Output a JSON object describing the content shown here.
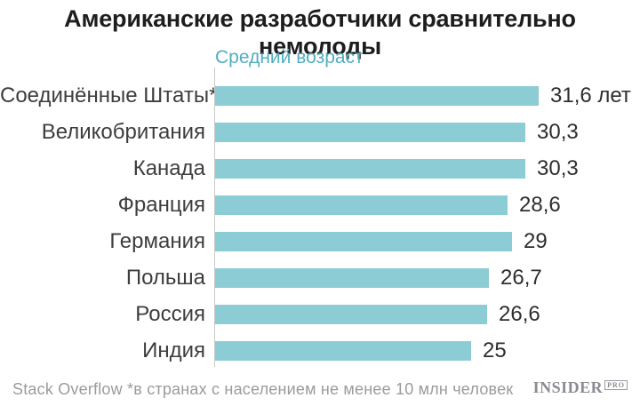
{
  "title": "Американские разработчики сравнительно немолоды",
  "subtitle": "Средний возраст",
  "footer": {
    "source": "Stack Overflow *в странах с населением не менее 10 млн человек",
    "logo_name": "INSIDER",
    "logo_suffix": "PRO"
  },
  "colors": {
    "bar": "#8cccd4",
    "subtitle": "#53aebe",
    "axis": "#c9c9c9",
    "title_text": "#1d1d1d",
    "label_text": "#3d3d3d",
    "footer_text": "#9b9b9b"
  },
  "chart_data": {
    "type": "bar",
    "orientation": "horizontal",
    "title": "Американские разработчики сравнительно немолоды",
    "subtitle": "Средний возраст",
    "categories": [
      "Соединённые Штаты*",
      "Великобритания",
      "Канада",
      "Франция",
      "Германия",
      "Польша",
      "Россия",
      "Индия"
    ],
    "values": [
      31.6,
      30.3,
      30.3,
      28.6,
      29,
      26.7,
      26.6,
      25
    ],
    "value_labels": [
      "31,6 лет",
      "30,3",
      "30,3",
      "28,6",
      "29",
      "26,7",
      "26,6",
      "25"
    ],
    "unit": "лет",
    "xlabel": "",
    "ylabel": "Средний возраст",
    "xlim": [
      0,
      31.6
    ],
    "grid": false,
    "legend": false,
    "source": "Stack Overflow",
    "note": "*в странах с населением не менее 10 млн человек"
  }
}
